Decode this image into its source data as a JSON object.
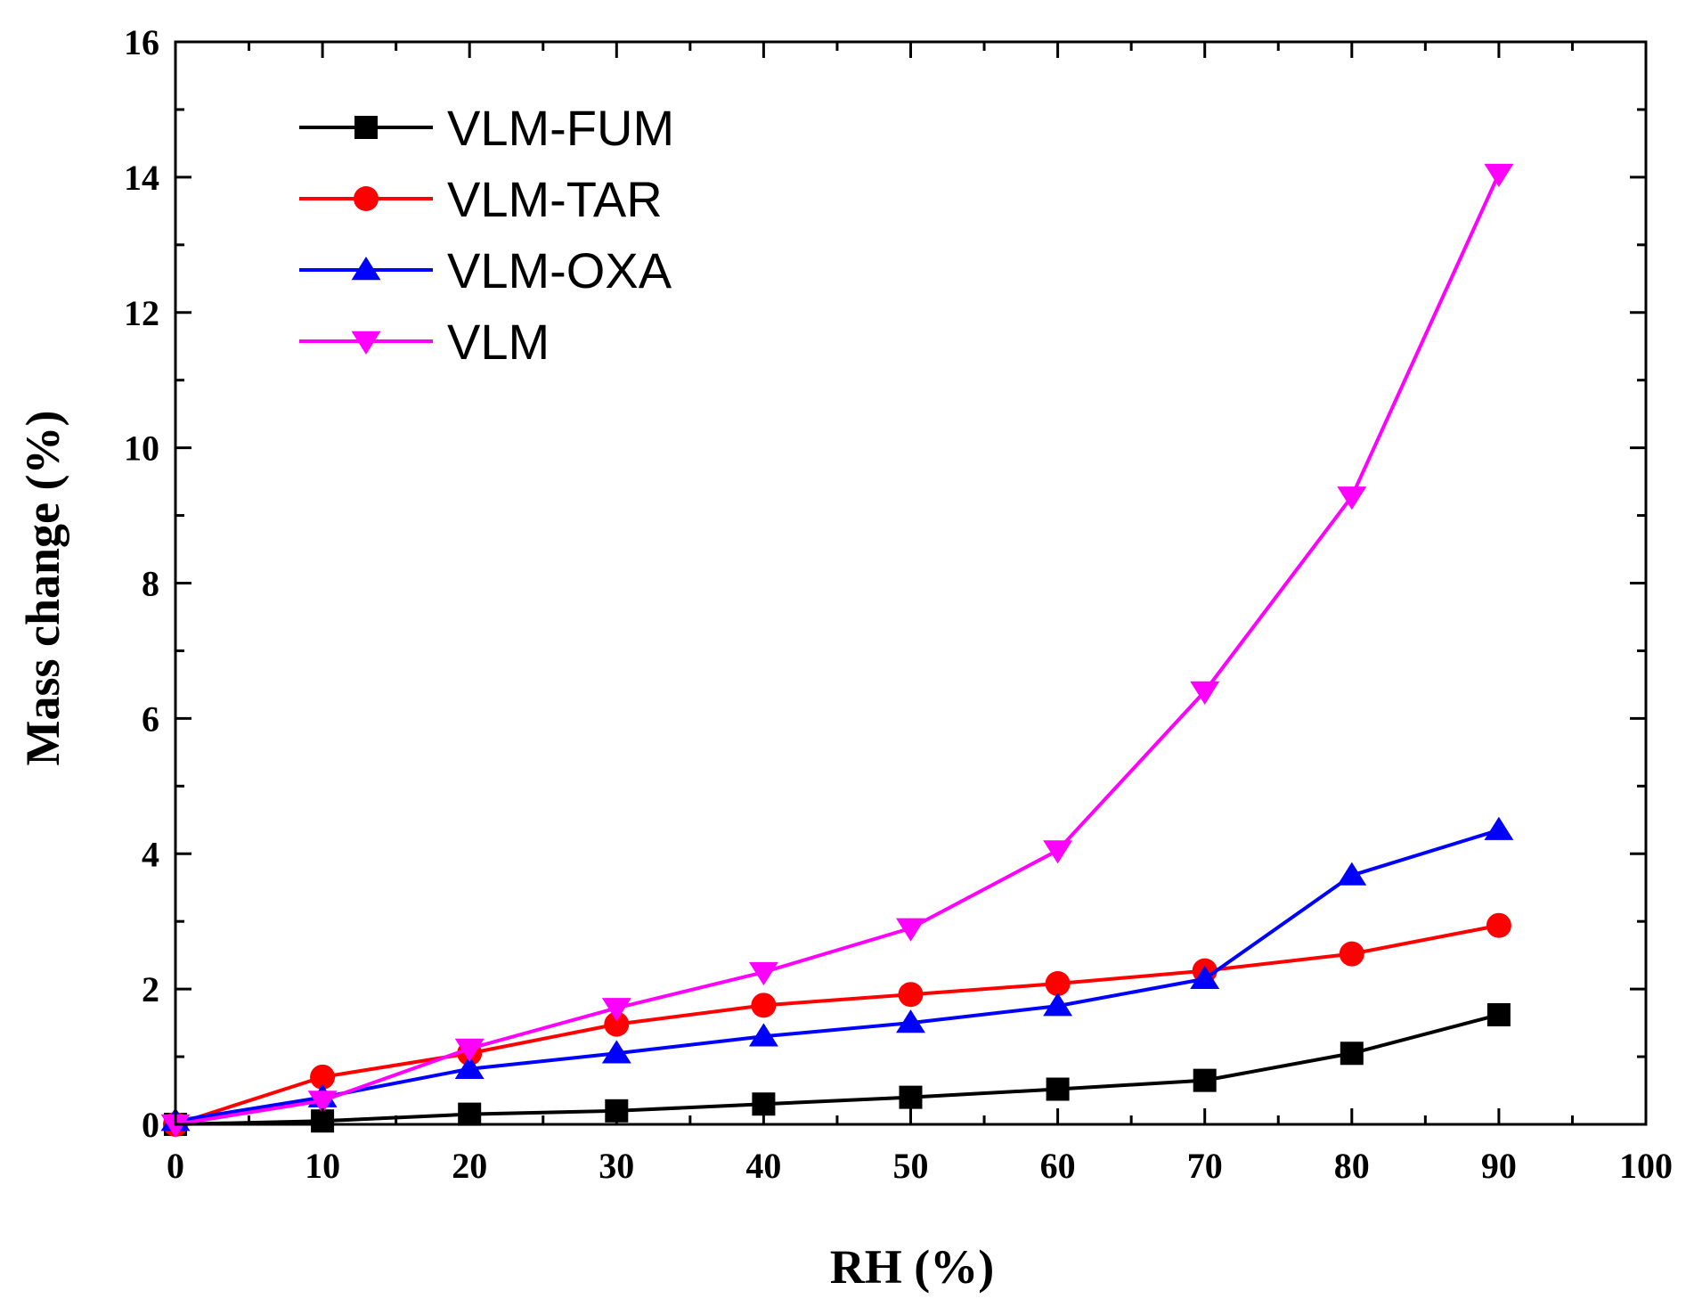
{
  "chart_data": {
    "type": "line",
    "title": "",
    "xlabel": "RH (%)",
    "ylabel": "Mass change (%)",
    "xlim": [
      0,
      100
    ],
    "ylim": [
      0,
      16
    ],
    "xticks": [
      0,
      10,
      20,
      30,
      40,
      50,
      60,
      70,
      80,
      90,
      100
    ],
    "yticks": [
      0,
      2,
      4,
      6,
      8,
      10,
      12,
      14,
      16
    ],
    "x": [
      0,
      10,
      20,
      30,
      40,
      50,
      60,
      70,
      80,
      90
    ],
    "legend_position": "top-left",
    "series": [
      {
        "name": "VLM-FUM",
        "color": "#000000",
        "marker": "square",
        "values": [
          0.0,
          0.05,
          0.15,
          0.2,
          0.3,
          0.4,
          0.52,
          0.65,
          1.05,
          1.62
        ]
      },
      {
        "name": "VLM-TAR",
        "color": "#ff0000",
        "marker": "circle",
        "values": [
          0.0,
          0.7,
          1.05,
          1.48,
          1.76,
          1.92,
          2.08,
          2.27,
          2.52,
          2.94
        ]
      },
      {
        "name": "VLM-OXA",
        "color": "#0000ff",
        "marker": "triangle-up",
        "values": [
          0.05,
          0.4,
          0.82,
          1.05,
          1.3,
          1.5,
          1.75,
          2.15,
          3.68,
          4.35
        ]
      },
      {
        "name": "VLM",
        "color": "#ff00ff",
        "marker": "triangle-down",
        "values": [
          0.0,
          0.35,
          1.12,
          1.72,
          2.25,
          2.9,
          4.05,
          6.4,
          9.28,
          14.05
        ]
      }
    ]
  }
}
